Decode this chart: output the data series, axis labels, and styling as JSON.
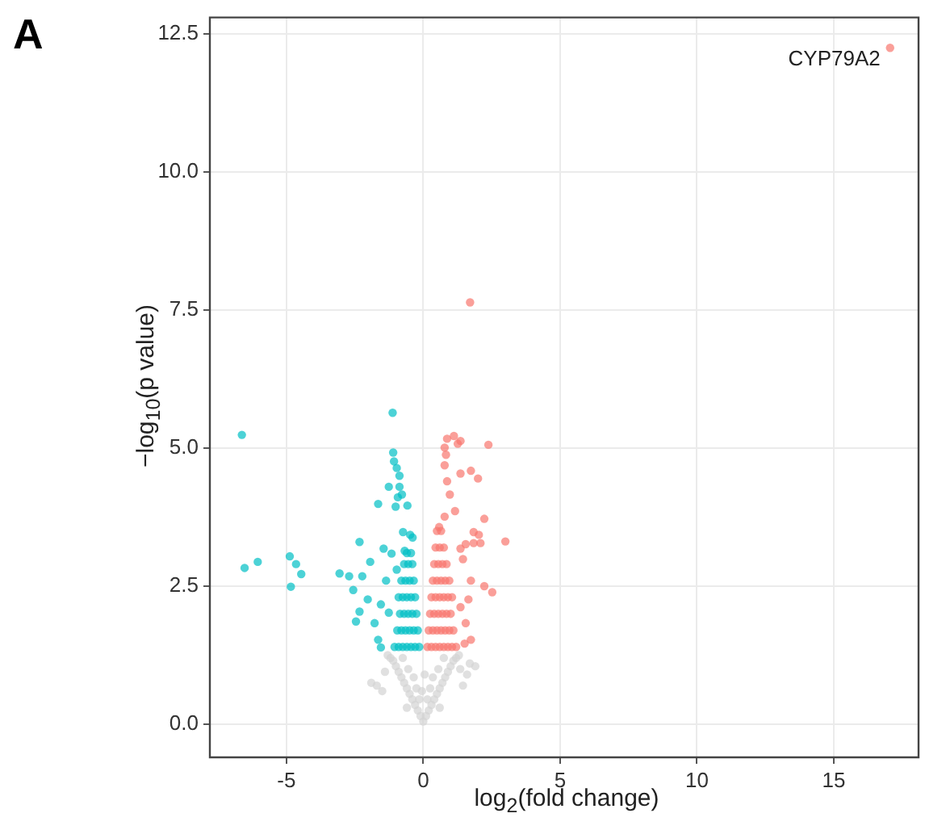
{
  "chart_data": {
    "type": "scatter",
    "title": "A",
    "xlabel": "log$_{2}$(fold change)",
    "ylabel": "−log$_{10}$(p value)",
    "xlim": [
      -7.8,
      18.1
    ],
    "ylim": [
      -0.6,
      12.8
    ],
    "xticks": [
      -5,
      0,
      5,
      10,
      15
    ],
    "yticks": [
      {
        "value": 0,
        "label": "0.0"
      },
      {
        "value": 2.5,
        "label": "2.5"
      },
      {
        "value": 5,
        "label": "5.0"
      },
      {
        "value": 7.5,
        "label": "7.5"
      },
      {
        "value": 10,
        "label": "10.0"
      },
      {
        "value": 12.5,
        "label": "12.5"
      }
    ],
    "grid": true,
    "legend": false,
    "marker": "circle",
    "annotations": [
      {
        "text": "CYP79A2",
        "x": 17.06,
        "y": 12.25
      }
    ],
    "series": [
      {
        "color": "#d3d3d3",
        "x": [
          0,
          -0.1,
          0.1,
          -0.2,
          0.2,
          -0.3,
          0.3,
          -0.15,
          0.15,
          -0.4,
          0.4,
          -0.5,
          0.5,
          -0.25,
          0.25,
          -0.6,
          0.6,
          -0.7,
          0.7,
          -0.35,
          0.35,
          -0.8,
          0.8,
          -0.9,
          0.9,
          -0.55,
          0.55,
          -1.0,
          1.0,
          -1.1,
          1.1,
          -0.75,
          0.75,
          -1.2,
          1.2,
          -1.3,
          1.3,
          -0.6,
          0.6,
          -0.05,
          0.05,
          -1.9,
          -1.7,
          -1.5,
          1.9,
          1.7,
          1.6,
          1.45,
          -1.4,
          1.35
        ],
        "values": [
          0.05,
          0.15,
          0.15,
          0.25,
          0.25,
          0.35,
          0.35,
          0.45,
          0.45,
          0.45,
          0.45,
          0.55,
          0.55,
          0.65,
          0.65,
          0.65,
          0.65,
          0.75,
          0.75,
          0.85,
          0.85,
          0.85,
          0.85,
          0.95,
          0.95,
          1.0,
          1.0,
          1.05,
          1.05,
          1.15,
          1.15,
          1.2,
          1.2,
          1.2,
          1.2,
          1.25,
          1.25,
          0.3,
          0.3,
          0.6,
          0.9,
          0.75,
          0.7,
          0.6,
          1.05,
          1.1,
          0.9,
          0.7,
          0.95,
          1.0
        ]
      },
      {
        "color": "#00bfc4",
        "x": [
          -6.63,
          -6.53,
          -6.05,
          -4.88,
          -4.65,
          -4.46,
          -4.84,
          -3.06,
          -2.33,
          -1.12,
          -1.1,
          -1.65,
          -1.07,
          -0.97,
          -0.87,
          -1.26,
          -0.87,
          -0.78,
          -0.93,
          -0.58,
          -1.01,
          -0.74,
          -0.48,
          -0.39,
          -2.56,
          -2.71,
          -2.23,
          -2.46,
          -2.33,
          -1.94,
          -2.03,
          -1.78,
          -1.65,
          -1.55,
          -1.45,
          -1.36,
          -1.16,
          -1.26,
          -0.97,
          -0.68,
          -1.55,
          -0.15,
          -0.3,
          -0.45,
          -0.6,
          -0.75,
          -0.9,
          -1.05,
          -0.2,
          -0.35,
          -0.5,
          -0.65,
          -0.8,
          -0.95,
          -0.25,
          -0.4,
          -0.55,
          -0.7,
          -0.85,
          -0.3,
          -0.45,
          -0.6,
          -0.75,
          -0.9,
          -0.35,
          -0.5,
          -0.65,
          -0.8,
          -0.4,
          -0.55,
          -0.7,
          -0.45,
          -0.6
        ],
        "values": [
          5.24,
          2.83,
          2.94,
          3.04,
          2.9,
          2.72,
          2.49,
          2.73,
          3.3,
          5.64,
          4.92,
          3.99,
          4.76,
          4.64,
          4.5,
          4.3,
          4.3,
          4.16,
          4.11,
          3.96,
          3.94,
          3.48,
          3.43,
          3.38,
          2.43,
          2.68,
          2.68,
          1.86,
          2.04,
          2.94,
          2.26,
          1.83,
          1.53,
          2.17,
          3.18,
          2.6,
          3.09,
          2.02,
          2.8,
          3.14,
          1.39,
          1.4,
          1.4,
          1.4,
          1.4,
          1.4,
          1.4,
          1.4,
          1.7,
          1.7,
          1.7,
          1.7,
          1.7,
          1.7,
          2.0,
          2.0,
          2.0,
          2.0,
          2.0,
          2.3,
          2.3,
          2.3,
          2.3,
          2.3,
          2.6,
          2.6,
          2.6,
          2.6,
          2.9,
          2.9,
          2.9,
          3.1,
          3.1
        ]
      },
      {
        "color": "#f8766d",
        "x": [
          17.06,
          1.71,
          1.12,
          0.87,
          1.36,
          1.26,
          2.38,
          0.78,
          0.83,
          1.36,
          1.74,
          2.0,
          0.78,
          0.87,
          2.23,
          1.84,
          2.03,
          1.84,
          2.09,
          3.0,
          2.23,
          2.52,
          1.55,
          1.36,
          1.74,
          1.55,
          1.74,
          1.51,
          0.97,
          1.16,
          0.78,
          0.58,
          1.45,
          1.65,
          1.36,
          0.15,
          0.3,
          0.45,
          0.6,
          0.75,
          0.9,
          1.05,
          1.2,
          0.2,
          0.35,
          0.5,
          0.65,
          0.8,
          0.95,
          1.1,
          0.25,
          0.4,
          0.55,
          0.7,
          0.85,
          1.0,
          0.3,
          0.45,
          0.6,
          0.75,
          0.9,
          1.05,
          0.35,
          0.5,
          0.65,
          0.8,
          0.95,
          0.4,
          0.55,
          0.7,
          0.85,
          0.45,
          0.6,
          0.75,
          0.5,
          0.65
        ],
        "values": [
          12.25,
          7.64,
          5.22,
          5.17,
          5.13,
          5.08,
          5.06,
          5.01,
          4.88,
          4.54,
          4.59,
          4.45,
          4.69,
          4.4,
          3.72,
          3.48,
          3.43,
          3.28,
          3.28,
          3.31,
          2.5,
          2.39,
          3.26,
          3.18,
          2.6,
          1.83,
          1.53,
          1.46,
          4.16,
          3.86,
          3.76,
          3.57,
          2.99,
          2.26,
          2.12,
          1.4,
          1.4,
          1.4,
          1.4,
          1.4,
          1.4,
          1.4,
          1.4,
          1.7,
          1.7,
          1.7,
          1.7,
          1.7,
          1.7,
          1.7,
          2.0,
          2.0,
          2.0,
          2.0,
          2.0,
          2.0,
          2.3,
          2.3,
          2.3,
          2.3,
          2.3,
          2.3,
          2.6,
          2.6,
          2.6,
          2.6,
          2.6,
          2.9,
          2.9,
          2.9,
          2.9,
          3.2,
          3.2,
          3.2,
          3.5,
          3.5
        ]
      }
    ]
  }
}
